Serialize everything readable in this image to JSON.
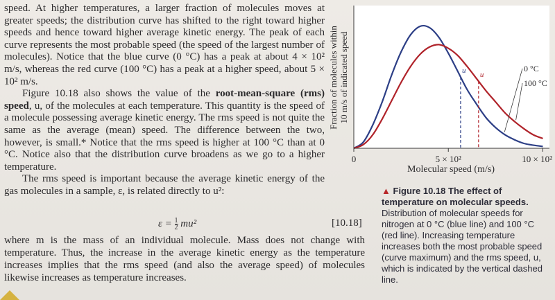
{
  "text": {
    "para1": "speed. At higher temperatures, a larger fraction of molecules moves at greater speeds; the distribution curve has shifted to the right toward higher speeds and hence toward higher average kinetic energy. The peak of each curve represents the most probable speed (the speed of the largest number of molecules). Notice that the blue curve (0 °C) has a peak at about 4 × 10² m/s, whereas the red curve (100 °C) has a peak at a higher speed, about 5 × 10² m/s.",
    "para2_start": "Figure 10.18 also shows the value of the ",
    "para2_bold": "root-mean-square (rms) speed",
    "para2_mid": ", u, of the molecules at each temperature. This quantity is the speed of a molecule possessing average kinetic energy. The rms speed is not quite the same as the average (mean) speed. The difference between the two, however, is small.* Notice that the rms speed is higher at 100 °C than at 0 °C. Notice also that the distribution curve broadens as we go to a higher temperature.",
    "para3": "The rms speed is important because the average kinetic energy of the gas molecules in a sample, ε, is related directly to u²:",
    "equation_lhs": "ε = ",
    "equation_num": "1",
    "equation_den": "2",
    "equation_rhs": "mu²",
    "equation_number": "[10.18]",
    "para4": "where m is the mass of an individual molecule. Mass does not change with temperature. Thus, the increase in the average kinetic energy as the temperature increases implies that the rms speed (and also the average speed) of molecules likewise increases as temperature increases."
  },
  "chart_data": {
    "type": "line",
    "xlabel": "Molecular speed (m/s)",
    "ylabel": "Fraction of molecules within 10 m/s of indicated speed",
    "xlim": [
      0,
      1000
    ],
    "x_ticks": [
      {
        "value": 0,
        "label": "0"
      },
      {
        "value": 500,
        "label": "5 × 10²"
      },
      {
        "value": 1000,
        "label": "10 × 10²"
      }
    ],
    "series": [
      {
        "name": "0 °C",
        "color": "#2d3f86",
        "x": [
          0,
          50,
          100,
          150,
          200,
          250,
          300,
          350,
          400,
          450,
          500,
          550,
          600,
          650,
          700,
          750,
          800,
          850,
          900,
          950,
          1000,
          1050
        ],
        "y": [
          0,
          0.05,
          0.19,
          0.38,
          0.6,
          0.79,
          0.93,
          1.0,
          0.99,
          0.91,
          0.78,
          0.63,
          0.48,
          0.36,
          0.25,
          0.17,
          0.11,
          0.07,
          0.04,
          0.025,
          0.015,
          0.008
        ]
      },
      {
        "name": "100 °C",
        "color": "#b0232a",
        "x": [
          0,
          50,
          100,
          150,
          200,
          250,
          300,
          350,
          400,
          450,
          500,
          550,
          600,
          650,
          700,
          750,
          800,
          850,
          900,
          950,
          1000,
          1050
        ],
        "y": [
          0,
          0.03,
          0.11,
          0.24,
          0.39,
          0.54,
          0.67,
          0.77,
          0.83,
          0.85,
          0.82,
          0.76,
          0.67,
          0.57,
          0.47,
          0.38,
          0.29,
          0.22,
          0.16,
          0.11,
          0.08,
          0.055
        ]
      }
    ],
    "rms": [
      {
        "label": "u",
        "series": "0 °C",
        "x": 565
      },
      {
        "label": "u",
        "series": "100 °C",
        "x": 660
      }
    ],
    "curve_labels": [
      {
        "text": "0 °C",
        "series": "0 °C"
      },
      {
        "text": "100 °C",
        "series": "100 °C"
      }
    ]
  },
  "caption": {
    "marker": "▲",
    "figure": "Figure 10.18",
    "title": "The effect of temperature on molecular speeds.",
    "body": "Distribution of molecular speeds for nitrogen at 0 °C (blue line) and 100 °C (red line). Increasing temperature increases both the most probable speed (curve maximum) and the rms speed, u, which is indicated by the vertical dashed line."
  },
  "colors": {
    "marker": "#d5b240",
    "caption_triangle": "#b8282a"
  }
}
